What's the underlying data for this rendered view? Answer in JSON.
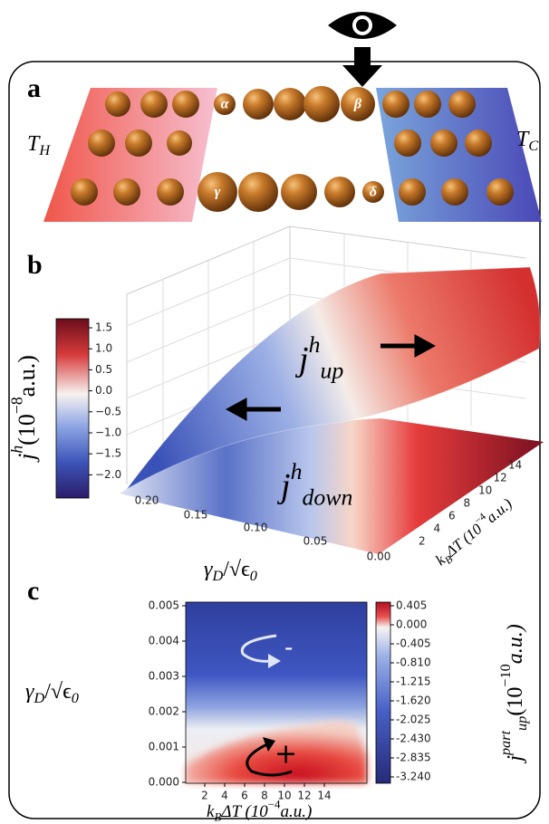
{
  "panel_a": {
    "label": "a",
    "hot": "T",
    "hot_sub": "H",
    "cold": "T",
    "cold_sub": "C",
    "sites": [
      "α",
      "β",
      "γ",
      "δ"
    ]
  },
  "panel_b": {
    "label": "b",
    "colorbar": {
      "ticks": [
        "1.5",
        "1.0",
        "0.5",
        "0.0",
        "−0.5",
        "−1.0",
        "−1.5",
        "−2.0"
      ],
      "title": {
        "symbol": "j",
        "sup": "h",
        "unit": "(10",
        "exp": "−8",
        "unit_end": "a.u.)"
      }
    },
    "upper": {
      "symbol": "j",
      "sup": "h",
      "sub": "up"
    },
    "lower": {
      "symbol": "j",
      "sup": "h",
      "sub": "down"
    },
    "x_axis": {
      "ticks": [
        "0.20",
        "0.15",
        "0.10",
        "0.05",
        "0.00"
      ],
      "label": {
        "symbol": "γ",
        "sub": "D",
        "rest": "/√ϵ",
        "sub2": "0"
      }
    },
    "depth_axis": {
      "ticks": [
        "2",
        "4",
        "6",
        "8",
        "10",
        "12",
        "14"
      ],
      "label": {
        "symbol": "k",
        "sub": "B",
        "rest": "ΔT (10",
        "exp": "−4",
        "unit_end": "a.u.)"
      }
    }
  },
  "panel_c": {
    "label": "c",
    "y_axis": {
      "ticks": [
        "0.005",
        "0.004",
        "0.003",
        "0.002",
        "0.001",
        "0.000"
      ],
      "label": {
        "symbol": "γ",
        "sub": "D",
        "rest": "/√ϵ",
        "sub2": "0"
      }
    },
    "x_axis": {
      "ticks": [
        "2",
        "4",
        "6",
        "8",
        "10",
        "12",
        "14"
      ],
      "label": {
        "symbol": "k",
        "sub": "B",
        "rest": "ΔT (10",
        "exp": "−4",
        "unit_end": "a.u.)"
      }
    },
    "colorbar": {
      "ticks": [
        "0.405",
        "0.000",
        "-0.405",
        "-0.810",
        "-1.215",
        "-1.620",
        "-2.025",
        "-2.430",
        "-2.835",
        "-3.240"
      ],
      "title": {
        "symbol": "j",
        "sup": "part",
        "sub": "up",
        "unit": "(10",
        "exp": "−10",
        "unit_end": "a.u.)"
      }
    },
    "signs": [
      "-",
      "+"
    ]
  }
}
